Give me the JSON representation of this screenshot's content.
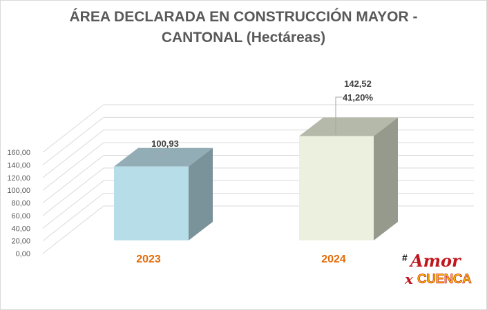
{
  "chart_data": {
    "type": "bar",
    "title_line1": "ÁREA DECLARADA EN CONSTRUCCIÓN MAYOR -",
    "title_line2": "CANTONAL (Hectáreas)",
    "categories": [
      "2023",
      "2024"
    ],
    "values": [
      100.93,
      142.52
    ],
    "value_labels": [
      "100,93",
      "142,52"
    ],
    "annotations": [
      {
        "category": "2024",
        "text": "41,20%"
      }
    ],
    "y_ticks": [
      "0,00",
      "20,00",
      "40,00",
      "60,00",
      "80,00",
      "100,00",
      "120,00",
      "140,00",
      "160,00"
    ],
    "ylim": [
      0,
      160
    ],
    "grid": true,
    "legend": "none",
    "colors": {
      "bar_2023_front": "#b7dee8",
      "bar_2023_top": "#93adb6",
      "bar_2023_side": "#7a9299",
      "bar_2024_front": "#ebf1de",
      "bar_2024_top": "#b5b9a9",
      "bar_2024_side": "#969a8c",
      "category_label": "#e36c09",
      "axis_text": "#595959",
      "grid": "#d9d9d9"
    }
  },
  "logo": {
    "hash": "#",
    "word1": "Amor",
    "word2_prefix": "x",
    "word2": "CUENCA"
  }
}
